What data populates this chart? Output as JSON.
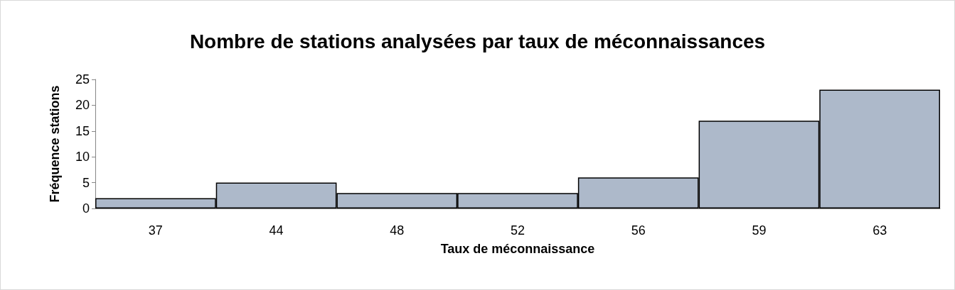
{
  "chart_data": {
    "type": "bar",
    "title": "Nombre de stations analysées par taux de méconnaissances",
    "xlabel": "Taux de méconnaissance",
    "ylabel": "Fréquence stations",
    "categories": [
      "37",
      "44",
      "48",
      "52",
      "56",
      "59",
      "63"
    ],
    "values": [
      2,
      5,
      3,
      3,
      6,
      17,
      23
    ],
    "color": "#adb9ca",
    "ylim": [
      0,
      25
    ],
    "yticks": [
      0,
      5,
      10,
      15,
      20,
      25
    ]
  }
}
